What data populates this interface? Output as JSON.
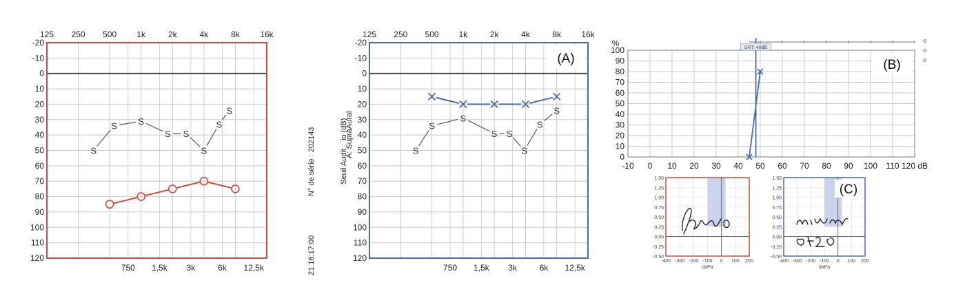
{
  "colors": {
    "right_ear": "#d24a3a",
    "left_ear": "#4a6aa8",
    "grid": "#c9c9c9",
    "bone": "#555555",
    "shade": "#b8c4e8"
  },
  "chart_data": [
    {
      "type": "line",
      "x_scale": "log2 frequency (Hz)",
      "top_ticks": [
        "125",
        "250",
        "500",
        "1k",
        "2k",
        "4k",
        "8k",
        "16k"
      ],
      "bottom_ticks": [
        "750",
        "1,5k",
        "3k",
        "6k",
        "12,5k"
      ],
      "y_ticks": [
        "-20",
        "-10",
        "0",
        "10",
        "20",
        "30",
        "40",
        "50",
        "60",
        "70",
        "80",
        "90",
        "100",
        "110",
        "120"
      ],
      "ylim": [
        -20,
        120
      ],
      "y_inverted": true,
      "frame_color": "#d24a3a",
      "series": [
        {
          "marker": "S",
          "color": "#555555",
          "x": [
            350,
            550,
            1000,
            1800,
            2700,
            4000,
            5600,
            7000
          ],
          "y": [
            50,
            34,
            31,
            39,
            39,
            50,
            33,
            24
          ]
        },
        {
          "marker": "circle",
          "color": "#d24a3a",
          "x": [
            500,
            1000,
            2000,
            4000,
            8000
          ],
          "y": [
            85,
            80,
            75,
            70,
            75
          ]
        }
      ]
    },
    {
      "type": "line",
      "tag": "(A)",
      "x_scale": "log2 frequency (Hz)",
      "top_ticks": [
        "125",
        "250",
        "500",
        "1k",
        "2k",
        "4k",
        "8k",
        "16k"
      ],
      "bottom_ticks": [
        "750",
        "1,5k",
        "3k",
        "6k",
        "12,5k"
      ],
      "y_ticks": [
        "-20",
        "-10",
        "0",
        "10",
        "20",
        "30",
        "40",
        "50",
        "60",
        "70",
        "80",
        "90",
        "100",
        "110",
        "120"
      ],
      "ylim": [
        -20,
        120
      ],
      "y_inverted": true,
      "frame_color": "#4a6aa8",
      "series": [
        {
          "marker": "S",
          "color": "#555555",
          "x": [
            350,
            500,
            1000,
            2000,
            2800,
            3900,
            5500,
            8000
          ],
          "y": [
            50,
            34,
            29,
            39,
            39,
            50,
            33,
            24
          ]
        },
        {
          "marker": "x",
          "color": "#4a6aa8",
          "x": [
            500,
            1000,
            2000,
            4000,
            8000
          ],
          "y": [
            15,
            20,
            20,
            20,
            15
          ]
        }
      ]
    },
    {
      "type": "line",
      "tag": "(B)",
      "x_ticks": [
        "-10",
        "0",
        "10",
        "20",
        "30",
        "40",
        "50",
        "60",
        "70",
        "80",
        "90",
        "100",
        "110",
        "120 dB"
      ],
      "y_ticks": [
        "0",
        "10",
        "20",
        "30",
        "40",
        "50",
        "60",
        "70",
        "80",
        "90",
        "100"
      ],
      "y_unit": "%",
      "xlim": [
        -10,
        120
      ],
      "ylim": [
        0,
        100
      ],
      "marker_label": "SRT: 48dB",
      "srt_db": 48,
      "series": [
        {
          "marker": "x",
          "color": "#4a6aa8",
          "x": [
            45,
            50
          ],
          "y": [
            0,
            80
          ]
        }
      ]
    },
    {
      "type": "area",
      "tag": "(C)",
      "x_ticks": [
        "-400",
        "-300",
        "-200",
        "-100",
        "0",
        "100",
        "200"
      ],
      "x_unit": "daPa",
      "y_ticks": [
        "1.50",
        "1.25",
        "1.00",
        "0.75",
        "0.50",
        "0.25",
        "0.00",
        "-0.25",
        "-0.50"
      ],
      "xlim": [
        -400,
        200
      ],
      "ylim": [
        -0.5,
        1.5
      ],
      "panels": [
        {
          "frame_color": "#d24a3a"
        },
        {
          "frame_color": "#4a6aa8"
        }
      ]
    }
  ],
  "side_texts": [
    "N° de série : 202143",
    "21 16:17:00",
    "A: SupraAural",
    "Seuil Audit",
    "io (dB)"
  ],
  "corner_marks": [
    "-0",
    "-0",
    "-0"
  ]
}
